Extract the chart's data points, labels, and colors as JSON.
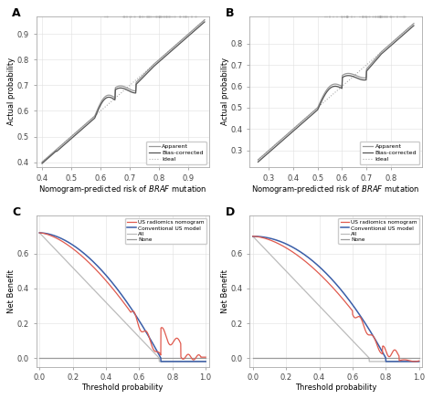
{
  "panel_A": {
    "title": "A",
    "xlabel": "Nomogram-predicted risk of $\\it{BRAF}$ mutation",
    "ylabel": "Actual probability",
    "xlim": [
      0.38,
      0.97
    ],
    "ylim": [
      0.38,
      0.97
    ],
    "xticks": [
      0.4,
      0.5,
      0.6,
      0.7,
      0.8,
      0.9
    ],
    "yticks": [
      0.4,
      0.5,
      0.6,
      0.7,
      0.8,
      0.9
    ]
  },
  "panel_B": {
    "title": "B",
    "xlabel": "Nomogram-predicted risk of $\\it{BRAF}$ mutation",
    "ylabel": "Actual probability",
    "xlim": [
      0.22,
      0.93
    ],
    "ylim": [
      0.22,
      0.93
    ],
    "xticks": [
      0.3,
      0.4,
      0.5,
      0.6,
      0.7,
      0.8
    ],
    "yticks": [
      0.3,
      0.4,
      0.5,
      0.6,
      0.7,
      0.8
    ]
  },
  "panel_C": {
    "title": "C",
    "xlabel": "Threshold probability",
    "ylabel": "Net Benefit",
    "xlim": [
      -0.02,
      1.02
    ],
    "ylim": [
      -0.05,
      0.82
    ],
    "xticks": [
      0.0,
      0.2,
      0.4,
      0.6,
      0.8,
      1.0
    ],
    "yticks": [
      0.0,
      0.2,
      0.4,
      0.6
    ]
  },
  "panel_D": {
    "title": "D",
    "xlabel": "Threshold probability",
    "ylabel": "Net Benefit",
    "xlim": [
      -0.02,
      1.02
    ],
    "ylim": [
      -0.05,
      0.82
    ],
    "xticks": [
      0.0,
      0.2,
      0.4,
      0.6,
      0.8,
      1.0
    ],
    "yticks": [
      0.0,
      0.2,
      0.4,
      0.6
    ]
  },
  "colors": {
    "apparent": "#999999",
    "bias_corrected": "#555555",
    "ideal": "#aaaaaa",
    "red": "#e05a4e",
    "blue": "#3a5ea8",
    "gray_all": "#bbbbbb",
    "gray_none": "#999999",
    "grid": "#e0e0e0"
  },
  "bg_color": "#ffffff",
  "font_size": 6,
  "label_font_size": 6,
  "title_font_size": 9
}
